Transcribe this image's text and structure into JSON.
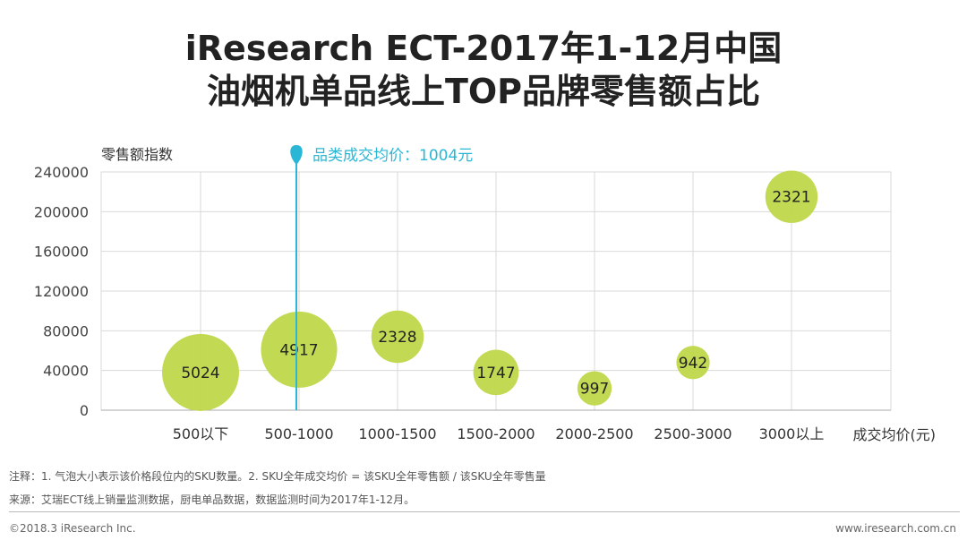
{
  "title_line1": "iResearch ECT-2017年1-12月中国",
  "title_line2": "油烟机单品线上TOP品牌零售额占比",
  "colors": {
    "bubble": "#bfd84a",
    "marker": "#2ab7d6",
    "grid": "#d9d9d9"
  },
  "chart_data": {
    "type": "scatter",
    "title": "油烟机单品线上TOP品牌零售额占比",
    "ylabel": "零售额指数",
    "xlabel": "成交均价(元)",
    "ylim": [
      0,
      240000
    ],
    "yticks": [
      0,
      40000,
      80000,
      120000,
      160000,
      200000,
      240000
    ],
    "ytick_labels": [
      "0",
      "40000",
      "80000",
      "120000",
      "160000",
      "200000",
      "240000"
    ],
    "categories": [
      "500以下",
      "500-1000",
      "1000-1500",
      "1500-2000",
      "2000-2500",
      "2500-3000",
      "3000以上"
    ],
    "points": [
      {
        "category": "500以下",
        "y": 38000,
        "sku_count": 5024,
        "label": "5024"
      },
      {
        "category": "500-1000",
        "y": 61000,
        "sku_count": 4917,
        "label": "4917"
      },
      {
        "category": "1000-1500",
        "y": 74000,
        "sku_count": 2328,
        "label": "2328"
      },
      {
        "category": "1500-2000",
        "y": 38000,
        "sku_count": 1747,
        "label": "1747"
      },
      {
        "category": "2000-2500",
        "y": 22000,
        "sku_count": 997,
        "label": "997"
      },
      {
        "category": "2500-3000",
        "y": 48000,
        "sku_count": 942,
        "label": "942"
      },
      {
        "category": "3000以上",
        "y": 215000,
        "sku_count": 2321,
        "label": "2321"
      }
    ],
    "reference_line": {
      "category_position": 1,
      "label": "品类成交均价：1004元"
    }
  },
  "notes": {
    "note1": "注释：1. 气泡大小表示该价格段位内的SKU数量。2. SKU全年成交均价 = 该SKU全年零售额 / 该SKU全年零售量",
    "note2": "来源：艾瑞ECT线上销量监测数据，厨电单品数据，数据监测时间为2017年1-12月。"
  },
  "footer": {
    "copyright": "©2018.3 iResearch Inc.",
    "website": "www.iresearch.com.cn"
  }
}
